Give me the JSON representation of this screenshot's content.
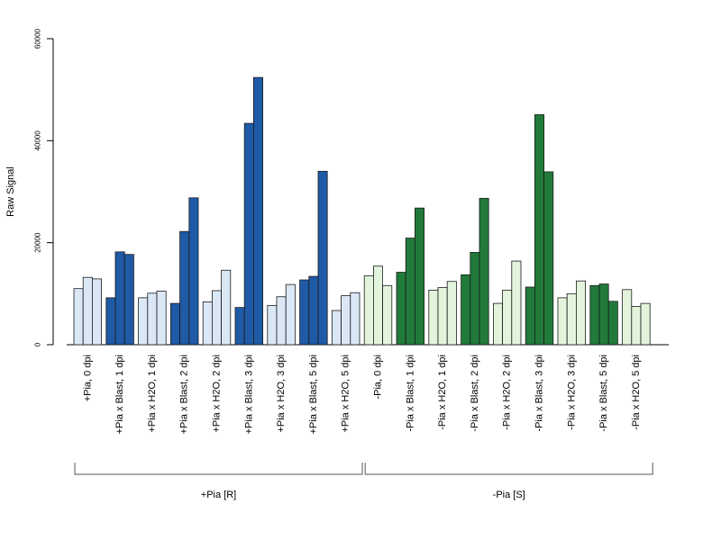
{
  "chart_data": {
    "type": "bar",
    "ylabel": "Raw Signal",
    "ylim": [
      0,
      60000
    ],
    "yticks": [
      0,
      20000,
      40000,
      60000
    ],
    "categories": [
      "+Pia, 0 dpi",
      "+Pia x Blast, 1 dpi",
      "+Pia x H2O, 1 dpi",
      "+Pia x Blast, 2 dpi",
      "+Pia x H2O, 2 dpi",
      "+Pia x Blast, 3 dpi",
      "+Pia x H2O, 3 dpi",
      "+Pia x Blast, 5 dpi",
      "+Pia x H2O, 5 dpi",
      "-Pia, 0 dpi",
      "-Pia x Blast, 1 dpi",
      "-Pia x H2O, 1 dpi",
      "-Pia x Blast, 2 dpi",
      "-Pia x H2O, 2 dpi",
      "-Pia x Blast, 3 dpi",
      "-Pia x H2O, 3 dpi",
      "-Pia x Blast, 5 dpi",
      "-Pia x H2O, 5 dpi"
    ],
    "replicate_values": [
      [
        11000,
        13200,
        12900
      ],
      [
        9200,
        18200,
        17700
      ],
      [
        9200,
        10100,
        10500
      ],
      [
        8100,
        22200,
        28800
      ],
      [
        8400,
        10600,
        14600
      ],
      [
        7300,
        43400,
        52400
      ],
      [
        7700,
        9400,
        11800
      ],
      [
        12700,
        13400,
        34000
      ],
      [
        6700,
        9600,
        10200
      ],
      [
        13500,
        15400,
        11600
      ],
      [
        14200,
        20900,
        26800
      ],
      [
        10700,
        11200,
        12400
      ],
      [
        13700,
        18100,
        28700
      ],
      [
        8100,
        10700,
        16400
      ],
      [
        11300,
        45100,
        33900
      ],
      [
        9200,
        10000,
        12500
      ],
      [
        11600,
        11900,
        8500
      ],
      [
        10800,
        7500,
        8100
      ]
    ],
    "bar_colors": [
      "#dae8f6",
      "#1f5aa6",
      "#dae8f6",
      "#1f5aa6",
      "#dae8f6",
      "#1f5aa6",
      "#dae8f6",
      "#1f5aa6",
      "#dae8f6",
      "#e3f4dd",
      "#217a3a",
      "#e3f4dd",
      "#217a3a",
      "#e3f4dd",
      "#217a3a",
      "#e3f4dd",
      "#217a3a",
      "#e3f4dd"
    ],
    "groups": [
      {
        "label": "+Pia [R]",
        "first": 0,
        "last": 8
      },
      {
        "label": "-Pia [S]",
        "first": 9,
        "last": 17
      }
    ],
    "grid": false,
    "legend": "none"
  }
}
